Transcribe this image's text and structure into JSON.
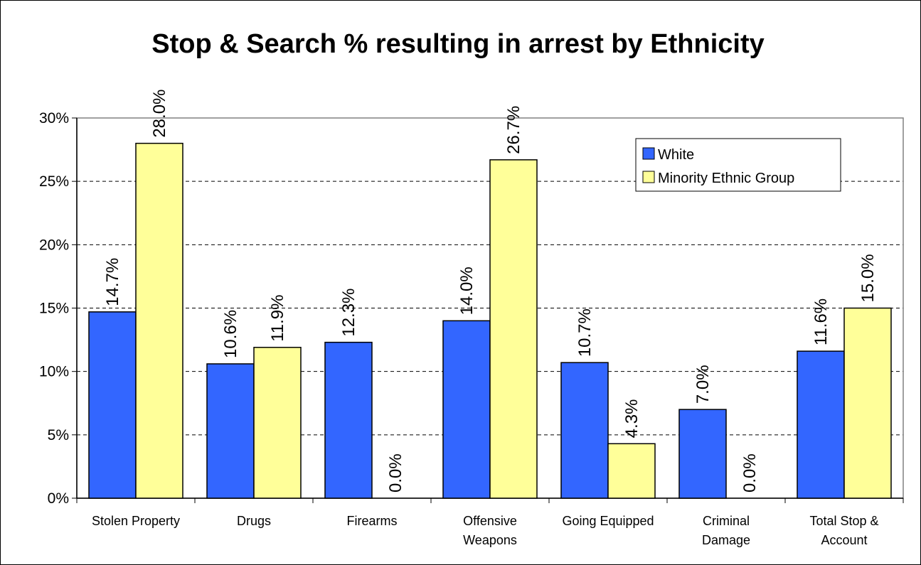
{
  "chart_data": {
    "type": "bar",
    "title": "Stop & Search % resulting in arrest by Ethnicity",
    "xlabel": "",
    "ylabel": "",
    "ylim": [
      0,
      30
    ],
    "yticks": [
      "0%",
      "5%",
      "10%",
      "15%",
      "20%",
      "25%",
      "30%"
    ],
    "ytick_values": [
      0,
      5,
      10,
      15,
      20,
      25,
      30
    ],
    "categories": [
      [
        "Stolen Property"
      ],
      [
        "Drugs"
      ],
      [
        "Firearms"
      ],
      [
        "Offensive",
        "Weapons"
      ],
      [
        "Going Equipped"
      ],
      [
        "Criminal",
        "Damage"
      ],
      [
        "Total Stop &",
        "Account"
      ]
    ],
    "series": [
      {
        "name": "White",
        "color": "#3366ff",
        "values": [
          14.7,
          10.6,
          12.3,
          14.0,
          10.7,
          7.0,
          11.6
        ],
        "labels": [
          "14.7%",
          "10.6%",
          "12.3%",
          "14.0%",
          "10.7%",
          "7.0%",
          "11.6%"
        ]
      },
      {
        "name": "Minority Ethnic Group",
        "color": "#ffff99",
        "values": [
          28.0,
          11.9,
          0.0,
          26.7,
          4.3,
          0.0,
          15.0
        ],
        "labels": [
          "28.0%",
          "11.9%",
          "0.0%",
          "26.7%",
          "4.3%",
          "0.0%",
          "15.0%"
        ]
      }
    ],
    "grid": true,
    "grid_style": "dashed",
    "legend_position": "top-right"
  }
}
